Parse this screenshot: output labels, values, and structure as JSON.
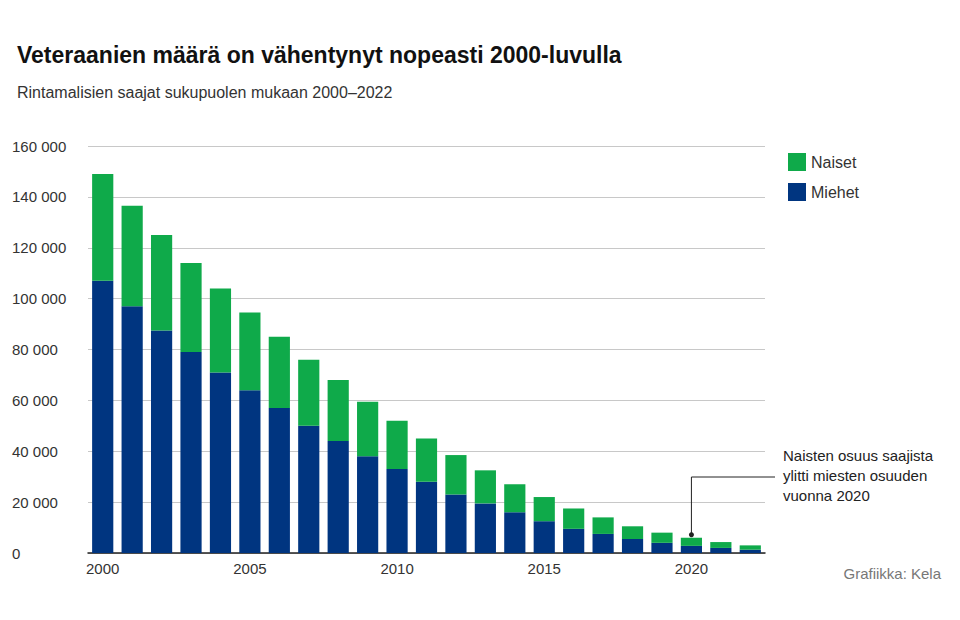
{
  "chart_data": {
    "type": "bar",
    "title": "Veteraanien määrä on vähentynyt nopeasti 2000-luvulla",
    "subtitle": "Rintamalisien saajat sukupuolen mukaan 2000–2022",
    "source": "Grafiikka: Kela",
    "categories": [
      "2000",
      null,
      null,
      null,
      null,
      "2005",
      null,
      null,
      null,
      null,
      "2010",
      null,
      null,
      null,
      null,
      "2015",
      null,
      null,
      null,
      null,
      "2020",
      null,
      null
    ],
    "series": [
      {
        "name": "Miehet",
        "color": "#003580",
        "values": [
          107000,
          97000,
          87500,
          79000,
          71000,
          64000,
          57000,
          50000,
          44000,
          38000,
          33000,
          28000,
          23000,
          19500,
          16000,
          12500,
          9500,
          7500,
          5500,
          4000,
          2800,
          2000,
          1300
        ]
      },
      {
        "name": "Naiset",
        "color": "#0faa4a",
        "values": [
          42000,
          39500,
          37500,
          35000,
          33000,
          30500,
          28000,
          26000,
          24000,
          21500,
          19000,
          17000,
          15500,
          13000,
          11000,
          9500,
          8000,
          6500,
          5000,
          4000,
          3200,
          2300,
          1700
        ]
      }
    ],
    "stacked": true,
    "ylim": [
      0,
      160000
    ],
    "yticks": [
      0,
      {
        "value": 20000,
        "label": "20 000"
      },
      {
        "value": 40000,
        "label": "40 000"
      },
      {
        "value": 60000,
        "label": "60 000"
      },
      {
        "value": 80000,
        "label": "80 000"
      },
      {
        "value": 100000,
        "label": "100 000"
      },
      {
        "value": 120000,
        "label": "120 000"
      },
      {
        "value": 140000,
        "label": "140 000"
      },
      {
        "value": 160000,
        "label": "160 000"
      }
    ],
    "grid": true,
    "legend": "top-right",
    "data_labels": false,
    "annotations": [
      {
        "text": "Naisten osuus saajista\nylitti miesten osuuden\nvuonna 2020",
        "x": "2020"
      }
    ]
  }
}
